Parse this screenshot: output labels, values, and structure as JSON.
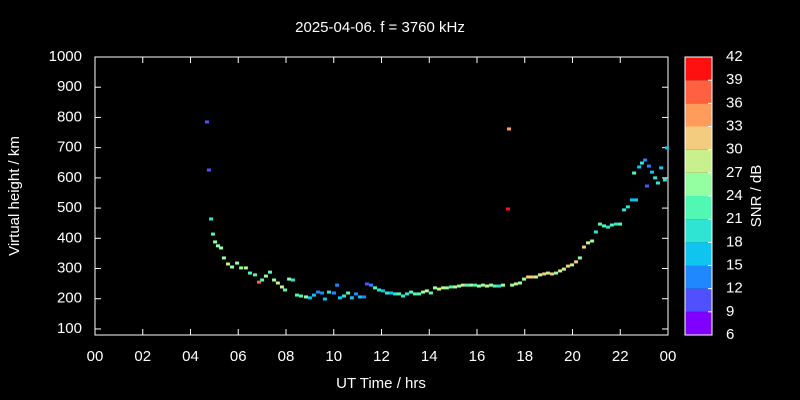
{
  "chart_data": {
    "type": "scatter",
    "title": "2025-04-06. f = 3760 kHz",
    "xlabel": "UT Time / hrs",
    "ylabel": "Virtual height / km",
    "colorbar_label": "SNR / dB",
    "x": [
      4.69,
      4.77,
      4.86,
      4.94,
      5.03,
      5.15,
      5.28,
      5.4,
      5.57,
      5.74,
      5.95,
      6.12,
      6.32,
      6.49,
      6.7,
      6.87,
      7.0,
      7.16,
      7.33,
      7.5,
      7.66,
      7.83,
      7.96,
      8.13,
      8.29,
      8.46,
      8.63,
      8.84,
      9.0,
      9.17,
      9.34,
      9.51,
      9.63,
      9.8,
      10.01,
      10.14,
      10.26,
      10.43,
      10.6,
      10.76,
      10.93,
      11.1,
      11.27,
      11.39,
      11.56,
      11.73,
      11.9,
      12.06,
      12.23,
      12.4,
      12.57,
      12.73,
      12.9,
      13.07,
      13.24,
      13.4,
      13.57,
      13.74,
      13.9,
      14.07,
      14.24,
      14.41,
      14.58,
      14.74,
      14.91,
      15.08,
      15.25,
      15.41,
      15.58,
      15.75,
      15.92,
      16.08,
      16.25,
      16.42,
      16.59,
      16.75,
      16.92,
      17.09,
      17.3,
      17.34,
      17.47,
      17.63,
      17.8,
      17.97,
      18.14,
      18.3,
      18.47,
      18.64,
      18.81,
      18.97,
      19.14,
      19.31,
      19.48,
      19.64,
      19.81,
      19.98,
      20.15,
      20.31,
      20.48,
      20.65,
      20.82,
      20.98,
      21.15,
      21.32,
      21.49,
      21.65,
      21.82,
      21.99,
      22.16,
      22.32,
      22.49,
      22.58,
      22.66,
      22.79,
      22.91,
      23.04,
      23.12,
      23.2,
      23.33,
      23.46,
      23.58,
      23.71,
      23.87,
      23.96
    ],
    "y": [
      785,
      626,
      464,
      414,
      388,
      375,
      368,
      335,
      315,
      305,
      318,
      302,
      302,
      285,
      279,
      255,
      262,
      275,
      288,
      262,
      252,
      239,
      229,
      265,
      262,
      212,
      209,
      206,
      203,
      212,
      222,
      219,
      199,
      222,
      219,
      245,
      203,
      209,
      219,
      203,
      216,
      206,
      206,
      249,
      245,
      236,
      229,
      226,
      219,
      219,
      216,
      216,
      209,
      216,
      222,
      216,
      216,
      222,
      226,
      219,
      236,
      232,
      236,
      236,
      239,
      239,
      242,
      245,
      245,
      245,
      245,
      242,
      245,
      242,
      245,
      242,
      242,
      245,
      497,
      762,
      245,
      249,
      252,
      265,
      272,
      272,
      272,
      279,
      282,
      285,
      282,
      285,
      292,
      298,
      308,
      312,
      322,
      335,
      371,
      385,
      391,
      421,
      447,
      441,
      437,
      444,
      447,
      447,
      494,
      504,
      527,
      616,
      527,
      636,
      649,
      659,
      573,
      639,
      619,
      600,
      583,
      633,
      593,
      699
    ],
    "snr": [
      11,
      11,
      20,
      21,
      24,
      26,
      25,
      25,
      28,
      24,
      26,
      25,
      27,
      21,
      23,
      37,
      21,
      24,
      22,
      25,
      27,
      29,
      22,
      24,
      19,
      22,
      21,
      24,
      15,
      17,
      14,
      13,
      16,
      20,
      13,
      14,
      15,
      18,
      22,
      17,
      14,
      16,
      12,
      11,
      13,
      22,
      19,
      17,
      20,
      16,
      20,
      21,
      19,
      18,
      22,
      21,
      23,
      26,
      28,
      23,
      25,
      27,
      29,
      24,
      23,
      27,
      25,
      28,
      23,
      26,
      22,
      25,
      26,
      28,
      24,
      23,
      20,
      25,
      40,
      33,
      26,
      28,
      25,
      26,
      30,
      31,
      28,
      27,
      32,
      29,
      30,
      26,
      29,
      28,
      31,
      29,
      30,
      25,
      31,
      29,
      24,
      20,
      22,
      21,
      18,
      22,
      19,
      23,
      19,
      20,
      17,
      21,
      17,
      16,
      18,
      12,
      10,
      14,
      16,
      18,
      20,
      17,
      19,
      16
    ],
    "xlim": [
      0,
      24
    ],
    "xticks": [
      {
        "value": 0,
        "label": "00"
      },
      {
        "value": 2,
        "label": "02"
      },
      {
        "value": 4,
        "label": "04"
      },
      {
        "value": 6,
        "label": "06"
      },
      {
        "value": 8,
        "label": "08"
      },
      10,
      12,
      14,
      16,
      18,
      20,
      22,
      {
        "value": 24,
        "label": "00"
      }
    ],
    "ylim": [
      80,
      1000
    ],
    "yticks": [
      100,
      200,
      300,
      400,
      500,
      600,
      700,
      800,
      900,
      1000
    ],
    "clim": [
      6,
      42
    ],
    "cticks": [
      6,
      9,
      12,
      15,
      18,
      21,
      24,
      27,
      30,
      33,
      36,
      39,
      42
    ],
    "colors": [
      "#8000ff",
      "#5050ff",
      "#2088ff",
      "#10c4f0",
      "#30e4d4",
      "#50f8b4",
      "#94ffa0",
      "#c8f08c",
      "#f4cc80",
      "#ff9c5c",
      "#ff6040",
      "#ff1010"
    ]
  }
}
